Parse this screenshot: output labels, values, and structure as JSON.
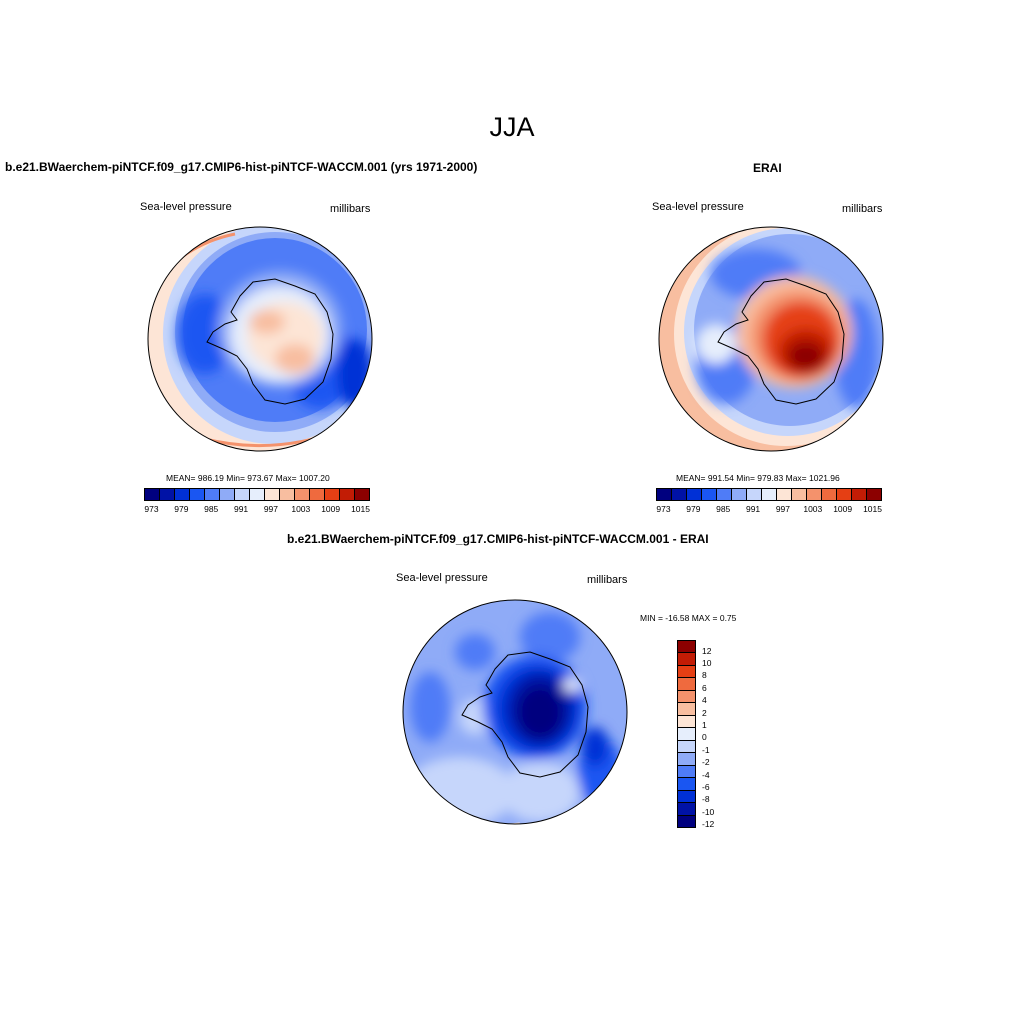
{
  "title": "JJA",
  "panels": {
    "model": {
      "title": "b.e21.BWaerchem-piNTCF.f09_g17.CMIP6-hist-piNTCF-WACCM.001 (yrs 1971-2000)",
      "variable": "Sea-level pressure",
      "units": "millibars",
      "stats": "MEAN= 986.19  Min= 973.67  Max= 1007.20"
    },
    "obs": {
      "title": "ERAI",
      "variable": "Sea-level pressure",
      "units": "millibars",
      "stats": "MEAN= 991.54  Min= 979.83  Max= 1021.96"
    },
    "diff": {
      "title": "b.e21.BWaerchem-piNTCF.f09_g17.CMIP6-hist-piNTCF-WACCM.001 - ERAI",
      "variable": "Sea-level pressure",
      "units": "millibars",
      "stats": "MIN = -16.58 MAX =   0.75"
    }
  },
  "colorbar_abs": {
    "colors": [
      "#00007f",
      "#0012a6",
      "#0030d6",
      "#1a56f2",
      "#4f7cf7",
      "#8fabf7",
      "#c6d6fb",
      "#e6eefc",
      "#fde5d6",
      "#f8bea0",
      "#f4926c",
      "#ef6a3e",
      "#e53f14",
      "#c21c05",
      "#8c0000"
    ],
    "ticks": [
      "973",
      "979",
      "985",
      "991",
      "997",
      "1003",
      "1009",
      "1015"
    ]
  },
  "colorbar_diff": {
    "colors_top_to_bottom": [
      "#8c0000",
      "#c21c05",
      "#e53f14",
      "#ef6a3e",
      "#f4926c",
      "#f8bea0",
      "#fde5d6",
      "#e6eefc",
      "#c6d6fb",
      "#8fabf7",
      "#4f7cf7",
      "#1a56f2",
      "#0030d6",
      "#0012a6",
      "#00007f"
    ],
    "ticks": [
      "12",
      "10",
      "8",
      "6",
      "4",
      "2",
      "1",
      "0",
      "-1",
      "-2",
      "-4",
      "-6",
      "-8",
      "-10",
      "-12"
    ]
  }
}
